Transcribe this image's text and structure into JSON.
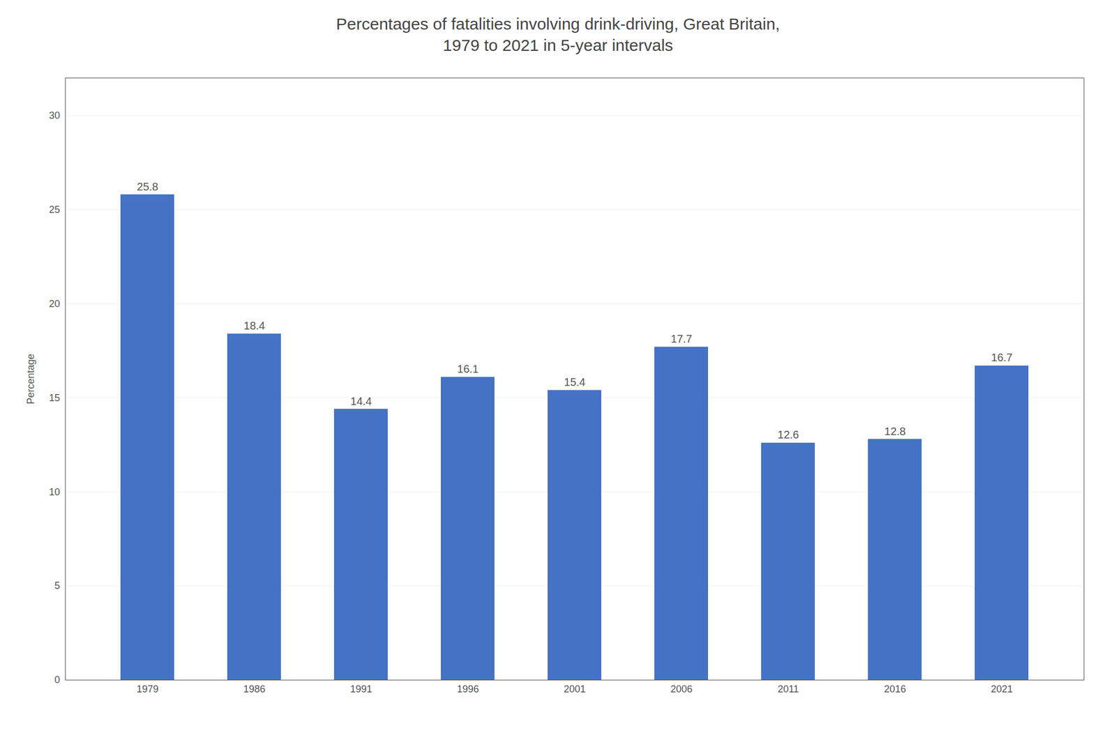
{
  "chart_data": {
    "type": "bar",
    "title": "Percentages of fatalities involving drink-driving, Great Britain,\n1979 to 2021 in 5-year intervals",
    "ylabel": "Percentage",
    "categories": [
      "1979",
      "1986",
      "1991",
      "1996",
      "2001",
      "2006",
      "2011",
      "2016",
      "2021"
    ],
    "values": [
      25.8,
      18.4,
      14.4,
      16.1,
      15.4,
      17.7,
      12.6,
      12.8,
      16.7
    ],
    "color": "#4472C4",
    "ylim": [
      0,
      32
    ],
    "yticks": [
      0,
      5,
      10,
      15,
      20,
      25,
      30
    ],
    "grid": true,
    "data_labels": true
  }
}
